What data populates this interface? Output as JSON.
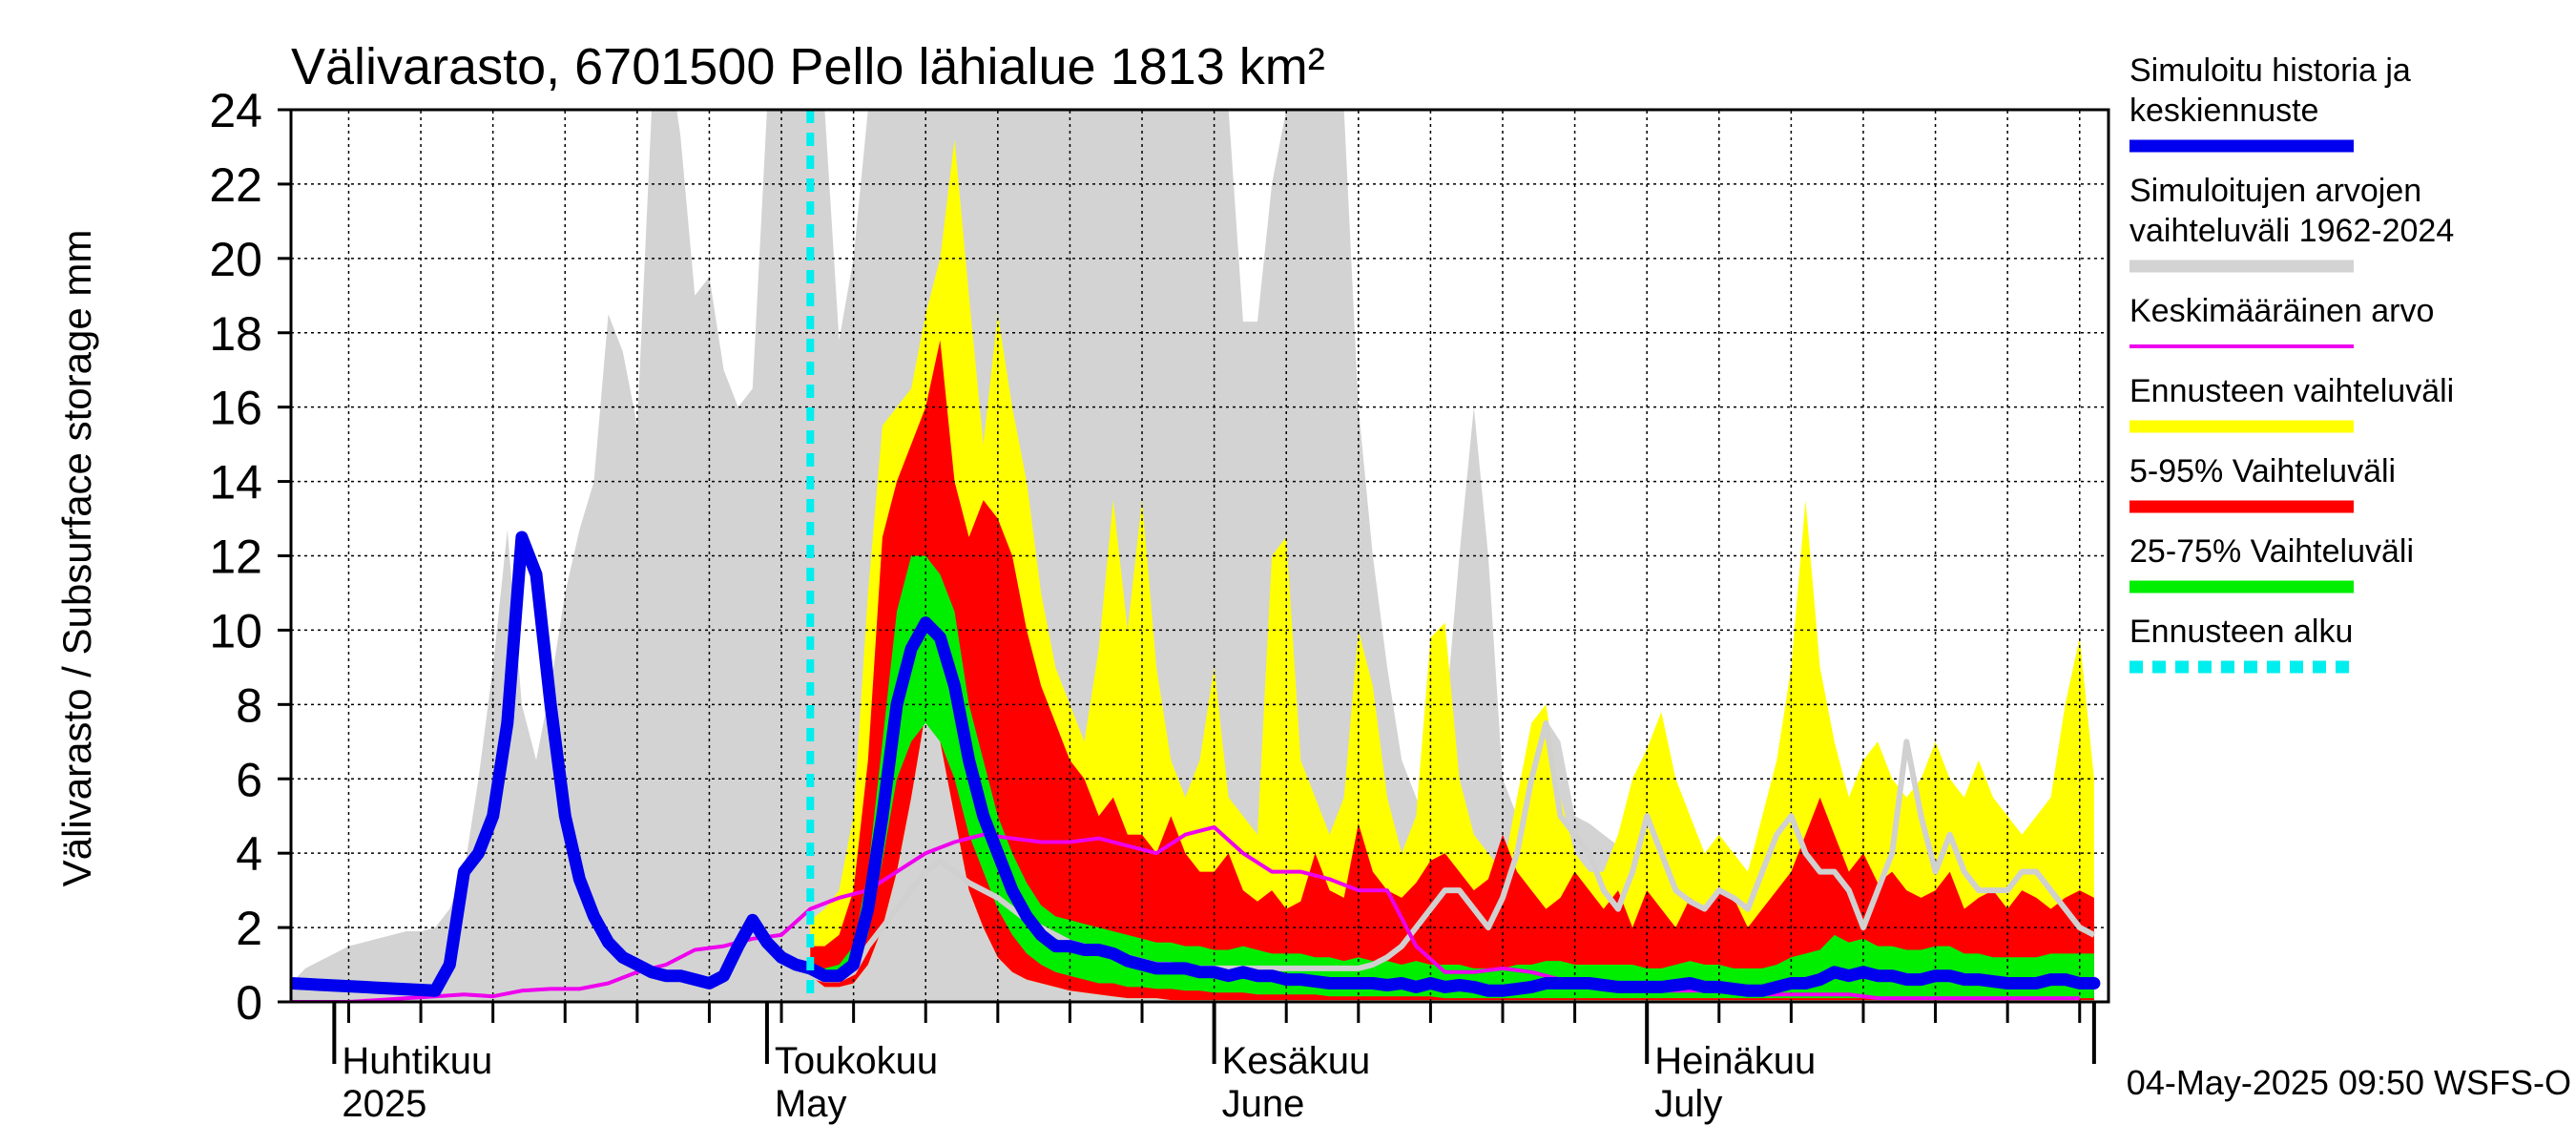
{
  "chart_data": {
    "type": "area",
    "title": "Välivarasto, 6701500 Pello lähialue 1813 km²",
    "ylabel": "Välivarasto / Subsurface storage  mm",
    "ylim": [
      0,
      24
    ],
    "y_ticks": [
      0,
      2,
      4,
      6,
      8,
      10,
      12,
      14,
      16,
      18,
      20,
      22,
      24
    ],
    "x_range": [
      "2025-03-29",
      "2025-08-02"
    ],
    "x_month_labels": [
      {
        "date": "2025-04-01",
        "line1": "Huhtikuu",
        "line2": "2025"
      },
      {
        "date": "2025-05-01",
        "line1": "Toukokuu",
        "line2": "May"
      },
      {
        "date": "2025-06-01",
        "line1": "Kesäkuu",
        "line2": "June"
      },
      {
        "date": "2025-07-01",
        "line1": "Heinäkuu",
        "line2": "July"
      }
    ],
    "grid": true,
    "legend_position": "right",
    "footer": "04-May-2025 09:50 WSFS-O",
    "forecast_start": "2025-05-04",
    "colors": {
      "history": "#0000ee",
      "range_hist": "#d3d3d3",
      "mean": "#ee00ee",
      "fc_range": "#ffff00",
      "p5_95": "#ff0000",
      "p25_75": "#00ee00",
      "forecast_start": "#00eeee",
      "grey_line": "#d0d0d0"
    },
    "legend": [
      {
        "key": "history",
        "lines": [
          "Simuloitu historia ja",
          "keskiennuste"
        ],
        "style": "thick"
      },
      {
        "key": "range_hist",
        "lines": [
          "Simuloitujen arvojen",
          "vaihteluväli 1962-2024"
        ],
        "style": "thick"
      },
      {
        "key": "mean",
        "lines": [
          "Keskimääräinen arvo"
        ],
        "style": "thin"
      },
      {
        "key": "fc_range",
        "lines": [
          "Ennusteen vaihteluväli"
        ],
        "style": "thick"
      },
      {
        "key": "p5_95",
        "lines": [
          "5-95% Vaihteluväli"
        ],
        "style": "thick"
      },
      {
        "key": "p25_75",
        "lines": [
          "25-75% Vaihteluväli"
        ],
        "style": "thick"
      },
      {
        "key": "forecast_start",
        "lines": [
          "Ennusteen alku"
        ],
        "style": "dashed"
      }
    ],
    "historical_range": {
      "start": "2025-03-29",
      "step_days": 1,
      "upper": [
        0.5,
        0.9,
        1.1,
        1.3,
        1.5,
        1.6,
        1.7,
        1.8,
        1.9,
        1.9,
        2.0,
        2.5,
        3.5,
        6.0,
        9.0,
        12.7,
        8.0,
        6.5,
        8.5,
        11.0,
        12.7,
        14.0,
        18.5,
        17.5,
        15.5,
        24.0,
        26.0,
        23.3,
        19.0,
        19.5,
        17.0,
        16.0,
        16.5,
        24.0,
        26.0,
        24.0,
        24.0,
        24.0,
        17.8,
        20.0,
        24.0,
        24.0,
        24.0,
        24.0,
        24.0,
        24.0,
        24.0,
        24.0,
        24.0,
        24.0,
        24.0,
        24.0,
        24.0,
        24.0,
        24.0,
        24.0,
        24.0,
        24.0,
        24.0,
        24.0,
        24.0,
        24.0,
        24.0,
        24.0,
        24.0,
        24.0,
        18.3,
        18.3,
        22.0,
        24.0,
        24.0,
        24.0,
        24.0,
        24.0,
        16.0,
        12.0,
        9.0,
        6.5,
        5.5,
        4.5,
        7.5,
        12.0,
        16.0,
        12.0,
        6.0,
        5.0,
        7.0,
        7.6,
        7.0,
        5.0,
        4.8,
        4.5,
        4.2,
        4.0,
        3.8,
        3.5,
        3.3,
        3.0,
        2.8,
        2.6,
        2.5,
        2.5,
        2.7,
        2.4,
        2.2,
        2.2,
        2.2,
        2.0,
        2.0,
        1.9,
        1.9,
        1.8,
        1.8,
        1.7,
        1.6,
        1.6,
        1.5,
        1.5,
        1.5,
        1.4,
        1.4,
        1.3,
        1.3,
        1.2,
        1.2,
        1.2
      ],
      "lower": [
        0,
        0,
        0,
        0,
        0,
        0,
        0,
        0,
        0,
        0,
        0,
        0,
        0,
        0,
        0,
        0,
        0,
        0,
        0,
        0,
        0,
        0,
        0,
        0,
        0,
        0,
        0,
        0,
        0,
        0,
        0,
        0,
        0,
        0,
        0,
        0,
        0,
        0,
        0,
        0,
        0,
        0,
        0,
        0,
        0,
        0,
        0,
        0,
        0,
        0,
        0,
        0,
        0,
        0,
        0,
        0,
        0,
        0,
        0,
        0,
        0,
        0,
        0,
        0,
        0,
        0,
        0,
        0,
        0,
        0,
        0,
        0,
        0,
        0,
        0,
        0,
        0,
        0,
        0,
        0,
        0,
        0,
        0,
        0,
        0,
        0,
        0,
        0,
        0,
        0,
        0,
        0,
        0,
        0,
        0,
        0,
        0,
        0,
        0,
        0,
        0,
        0,
        0,
        0,
        0,
        0,
        0,
        0,
        0,
        0,
        0,
        0,
        0,
        0,
        0,
        0,
        0,
        0,
        0,
        0,
        0,
        0,
        0,
        0,
        0,
        0
      ]
    },
    "history_series": {
      "start": "2025-03-29",
      "step_days": 1,
      "values": [
        0.5,
        0.48,
        0.46,
        0.44,
        0.42,
        0.4,
        0.38,
        0.36,
        0.34,
        0.32,
        0.3,
        1.0,
        3.5,
        4.0,
        5.0,
        7.5,
        12.5,
        11.5,
        8.0,
        5.0,
        3.3,
        2.3,
        1.6,
        1.2,
        1.0,
        0.8,
        0.7,
        0.7,
        0.6,
        0.5,
        0.7,
        1.5,
        2.2,
        1.6,
        1.2,
        1.0,
        0.9
      ]
    },
    "mean_series": {
      "start": "2025-03-29",
      "step_days": 2,
      "values": [
        0.0,
        0.0,
        0.0,
        0.05,
        0.1,
        0.15,
        0.2,
        0.15,
        0.3,
        0.35,
        0.35,
        0.5,
        0.8,
        1.0,
        1.4,
        1.5,
        1.7,
        1.8,
        2.5,
        2.8,
        3.0,
        3.5,
        4.0,
        4.3,
        4.5,
        4.4,
        4.3,
        4.3,
        4.4,
        4.2,
        4.0,
        4.5,
        4.7,
        4.0,
        3.5,
        3.5,
        3.3,
        3.0,
        3.0,
        1.5,
        0.8,
        0.8,
        0.9,
        0.8,
        0.6,
        0.5,
        0.5,
        0.3,
        0.3,
        0.3,
        0.3,
        0.2,
        0.2,
        0.2,
        0.2,
        0.1,
        0.1,
        0.1,
        0.1,
        0.1,
        0.1,
        0.1,
        0.1
      ]
    },
    "forecast": {
      "start": "2025-05-04",
      "step_days": 1,
      "median": [
        0.9,
        0.7,
        0.7,
        1.0,
        2.5,
        5.0,
        8.0,
        9.5,
        10.2,
        9.8,
        8.5,
        6.5,
        5.0,
        4.0,
        3.0,
        2.3,
        1.8,
        1.5,
        1.5,
        1.4,
        1.4,
        1.3,
        1.1,
        1.0,
        0.9,
        0.9,
        0.9,
        0.8,
        0.8,
        0.7,
        0.8,
        0.7,
        0.7,
        0.6,
        0.6,
        0.55,
        0.5,
        0.5,
        0.5,
        0.5,
        0.45,
        0.5,
        0.4,
        0.5,
        0.4,
        0.45,
        0.4,
        0.3,
        0.3,
        0.35,
        0.4,
        0.5,
        0.5,
        0.5,
        0.5,
        0.45,
        0.4,
        0.4,
        0.4,
        0.4,
        0.45,
        0.5,
        0.4,
        0.4,
        0.35,
        0.3,
        0.3,
        0.4,
        0.5,
        0.5,
        0.6,
        0.8,
        0.7,
        0.8,
        0.7,
        0.7,
        0.6,
        0.6,
        0.7,
        0.7,
        0.6,
        0.6,
        0.55,
        0.5,
        0.5,
        0.5,
        0.6,
        0.6,
        0.5,
        0.5
      ],
      "p25": [
        0.8,
        0.6,
        0.6,
        0.8,
        1.8,
        3.8,
        6.0,
        7.0,
        7.5,
        7.0,
        6.0,
        4.5,
        3.5,
        2.5,
        1.8,
        1.3,
        1.0,
        0.8,
        0.7,
        0.6,
        0.5,
        0.5,
        0.4,
        0.4,
        0.35,
        0.35,
        0.3,
        0.3,
        0.25,
        0.25,
        0.25,
        0.2,
        0.2,
        0.2,
        0.2,
        0.2,
        0.15,
        0.15,
        0.15,
        0.15,
        0.15,
        0.15,
        0.15,
        0.15,
        0.1,
        0.1,
        0.1,
        0.1,
        0.1,
        0.1,
        0.1,
        0.1,
        0.1,
        0.1,
        0.1,
        0.1,
        0.1,
        0.1,
        0.1,
        0.1,
        0.1,
        0.1,
        0.1,
        0.1,
        0.1,
        0.1,
        0.1,
        0.1,
        0.1,
        0.1,
        0.1,
        0.1,
        0.1,
        0.1,
        0.1,
        0.1,
        0.1,
        0.1,
        0.1,
        0.1,
        0.1,
        0.1,
        0.1,
        0.1,
        0.1,
        0.1,
        0.1,
        0.1,
        0.1,
        0.1
      ],
      "p75": [
        1.0,
        0.9,
        1.0,
        1.5,
        3.5,
        7.0,
        10.5,
        12.0,
        12.0,
        11.5,
        10.5,
        8.0,
        6.5,
        5.0,
        4.0,
        3.2,
        2.6,
        2.3,
        2.2,
        2.1,
        2.0,
        1.9,
        1.8,
        1.7,
        1.6,
        1.6,
        1.5,
        1.5,
        1.4,
        1.4,
        1.5,
        1.4,
        1.3,
        1.3,
        1.3,
        1.2,
        1.2,
        1.1,
        1.2,
        1.1,
        1.1,
        1.0,
        1.1,
        1.0,
        1.0,
        1.0,
        0.9,
        0.9,
        0.9,
        1.0,
        1.0,
        1.1,
        1.1,
        1.0,
        1.0,
        1.0,
        1.0,
        1.0,
        0.9,
        0.9,
        1.0,
        1.1,
        1.0,
        1.0,
        0.9,
        0.9,
        0.9,
        1.0,
        1.2,
        1.3,
        1.4,
        1.8,
        1.6,
        1.7,
        1.5,
        1.5,
        1.4,
        1.4,
        1.5,
        1.5,
        1.3,
        1.3,
        1.2,
        1.2,
        1.2,
        1.2,
        1.3,
        1.3,
        1.3,
        1.3
      ],
      "p5": [
        0.7,
        0.4,
        0.4,
        0.5,
        1.0,
        2.0,
        3.5,
        5.5,
        7.8,
        7.0,
        5.0,
        3.0,
        2.0,
        1.2,
        0.8,
        0.6,
        0.5,
        0.4,
        0.3,
        0.25,
        0.2,
        0.15,
        0.1,
        0.1,
        0.1,
        0.05,
        0.05,
        0.05,
        0.05,
        0.05,
        0.05,
        0.05,
        0.05,
        0.05,
        0.05,
        0.05,
        0.05,
        0.05,
        0.05,
        0.05,
        0.05,
        0.05,
        0.05,
        0.05,
        0.05,
        0.05,
        0.05,
        0.05,
        0.05,
        0.05,
        0.05,
        0.05,
        0.05,
        0.05,
        0.05,
        0.05,
        0.05,
        0.05,
        0.05,
        0.05,
        0.05,
        0.05,
        0.05,
        0.05,
        0.05,
        0.05,
        0.05,
        0.05,
        0.05,
        0.05,
        0.05,
        0.05,
        0.05,
        0.05,
        0.05,
        0.05,
        0.05,
        0.05,
        0.05,
        0.05,
        0.05,
        0.05,
        0.05,
        0.05,
        0.05,
        0.05,
        0.05,
        0.05,
        0.05,
        0.05
      ],
      "p95": [
        1.5,
        1.5,
        1.8,
        3.0,
        6.5,
        12.5,
        14.0,
        15.0,
        16.0,
        17.8,
        14.0,
        12.5,
        13.5,
        13.0,
        12.0,
        10.0,
        8.5,
        7.5,
        6.5,
        6.0,
        5.0,
        5.5,
        4.5,
        4.5,
        4.0,
        5.0,
        4.0,
        3.5,
        3.5,
        4.0,
        3.0,
        2.7,
        3.0,
        2.5,
        2.7,
        4.0,
        3.0,
        2.8,
        4.8,
        3.5,
        3.0,
        2.8,
        3.2,
        3.8,
        4.0,
        3.5,
        3.0,
        3.3,
        4.5,
        3.5,
        3.0,
        2.5,
        2.8,
        3.5,
        3.0,
        2.5,
        3.0,
        2.0,
        3.0,
        2.5,
        2.0,
        2.8,
        2.5,
        3.0,
        2.8,
        2.0,
        2.5,
        3.0,
        3.5,
        4.5,
        5.5,
        4.5,
        3.5,
        4.0,
        3.2,
        3.5,
        3.0,
        2.8,
        3.0,
        3.5,
        2.5,
        2.8,
        3.0,
        2.5,
        3.0,
        2.8,
        2.5,
        2.8,
        3.0,
        2.8
      ],
      "max": [
        2.2,
        2.5,
        3.0,
        5.0,
        11.0,
        15.5,
        16.0,
        16.5,
        18.5,
        20.0,
        23.2,
        19.0,
        15.0,
        18.5,
        16.0,
        14.0,
        11.0,
        9.0,
        8.0,
        7.0,
        9.5,
        13.5,
        10.0,
        13.5,
        9.0,
        6.5,
        5.5,
        6.5,
        9.0,
        5.5,
        5.0,
        4.5,
        12.0,
        12.5,
        6.5,
        5.5,
        4.5,
        5.5,
        10.0,
        8.5,
        5.5,
        4.0,
        5.0,
        9.8,
        10.2,
        6.0,
        4.5,
        4.0,
        3.5,
        5.5,
        7.5,
        8.0,
        5.5,
        4.0,
        3.5,
        3.5,
        4.5,
        6.0,
        6.8,
        7.8,
        6.0,
        5.0,
        4.0,
        4.5,
        4.0,
        3.5,
        5.0,
        6.5,
        9.0,
        13.5,
        9.0,
        7.0,
        5.5,
        6.5,
        7.0,
        6.0,
        5.5,
        6.0,
        7.0,
        6.0,
        5.5,
        6.5,
        5.5,
        5.0,
        4.5,
        5.0,
        5.5,
        8.0,
        9.8,
        6.0
      ],
      "grey_member": [
        0.7,
        0.6,
        0.6,
        0.8,
        1.5,
        2.0,
        2.5,
        3.0,
        3.5,
        3.8,
        3.5,
        3.2,
        3.0,
        2.8,
        2.5,
        2.2,
        2.0,
        1.8,
        1.6,
        1.5,
        1.4,
        1.3,
        1.2,
        1.1,
        1.0,
        1.0,
        0.9,
        0.9,
        0.9,
        0.9,
        0.9,
        0.9,
        0.9,
        0.9,
        0.9,
        0.9,
        0.9,
        0.9,
        0.9,
        1.0,
        1.2,
        1.5,
        2.0,
        2.5,
        3.0,
        3.0,
        2.5,
        2.0,
        2.8,
        4.0,
        6.0,
        7.5,
        5.0,
        4.5,
        4.0,
        3.0,
        2.5,
        3.5,
        5.0,
        4.0,
        3.0,
        2.7,
        2.5,
        3.0,
        2.8,
        2.5,
        3.5,
        4.5,
        5.0,
        4.0,
        3.5,
        3.5,
        3.0,
        2.0,
        3.0,
        4.0,
        7.0,
        5.0,
        3.5,
        4.5,
        3.5,
        3.0,
        3.0,
        3.0,
        3.5,
        3.5,
        3.0,
        2.5,
        2.0,
        1.8
      ]
    }
  }
}
